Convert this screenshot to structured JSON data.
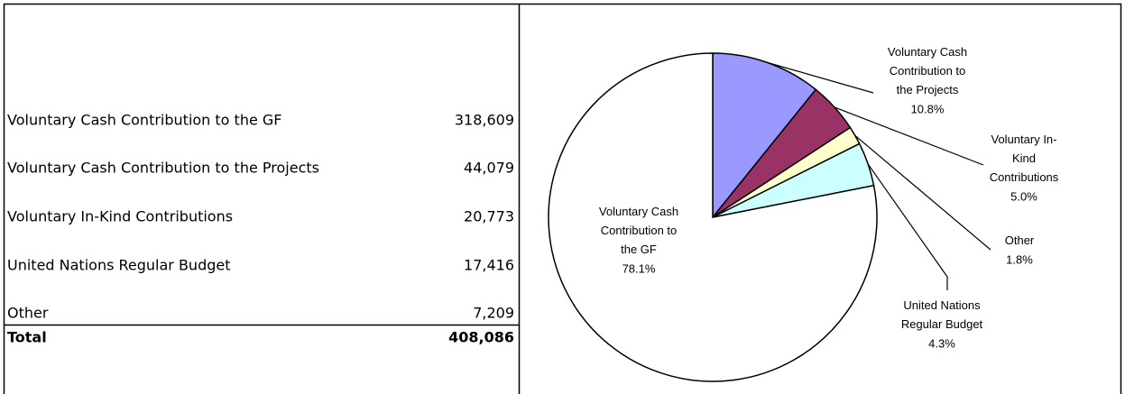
{
  "table": {
    "rows": [
      [
        "Voluntary Cash Contribution to the GF",
        "318,609"
      ],
      [
        "Voluntary Cash Contribution to the Projects",
        "44,079"
      ],
      [
        "Voluntary In-Kind Contributions",
        "20,773"
      ],
      [
        "United Nations Regular Budget",
        "17,416"
      ],
      [
        "Other",
        "7,209"
      ]
    ],
    "total": [
      "Total",
      "408,086"
    ]
  },
  "chart_data": {
    "type": "pie",
    "categories": [
      "Voluntary Cash Contribution to the Projects",
      "Voluntary In-Kind Contributions",
      "Other",
      "United Nations Regular Budget",
      "Voluntary Cash Contribution to the GF"
    ],
    "values": [
      10.8,
      5.0,
      1.8,
      4.3,
      78.1
    ],
    "value_labels": [
      "10.8%",
      "5.0%",
      "1.8%",
      "4.3%",
      "78.1%"
    ],
    "colors": [
      "#9999ff",
      "#993366",
      "#ffffcc",
      "#ccffff",
      "#ffffff"
    ]
  }
}
